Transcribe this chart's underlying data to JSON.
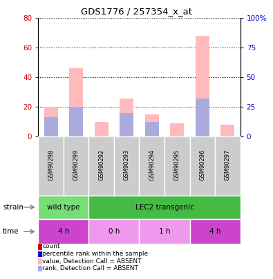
{
  "title": "GDS1776 / 257354_x_at",
  "samples": [
    "GSM90298",
    "GSM90299",
    "GSM90292",
    "GSM90293",
    "GSM90294",
    "GSM90295",
    "GSM90296",
    "GSM90297"
  ],
  "pink_bars": [
    20,
    46,
    10,
    26,
    15,
    9,
    68,
    8
  ],
  "blue_bars": [
    13,
    20,
    0,
    16,
    10,
    0,
    26,
    0
  ],
  "left_ylim": [
    0,
    80
  ],
  "right_ylim": [
    0,
    100
  ],
  "left_yticks": [
    0,
    20,
    40,
    60,
    80
  ],
  "right_yticks": [
    0,
    25,
    50,
    75,
    100
  ],
  "right_yticklabels": [
    "0",
    "25",
    "50",
    "75",
    "100%"
  ],
  "strain_labels": [
    {
      "label": "wild type",
      "start": 0,
      "end": 2,
      "color": "#77dd77"
    },
    {
      "label": "LEC2 transgenic",
      "start": 2,
      "end": 8,
      "color": "#44bb44"
    }
  ],
  "time_labels": [
    {
      "label": "4 h",
      "start": 0,
      "end": 2,
      "color": "#cc44cc"
    },
    {
      "label": "0 h",
      "start": 2,
      "end": 4,
      "color": "#ee99ee"
    },
    {
      "label": "1 h",
      "start": 4,
      "end": 6,
      "color": "#ee99ee"
    },
    {
      "label": "4 h",
      "start": 6,
      "end": 8,
      "color": "#cc44cc"
    }
  ],
  "bar_color_pink": "#ffbbbb",
  "bar_color_blue": "#aaaadd",
  "tick_label_color_left": "#cc0000",
  "tick_label_color_right": "#0000cc",
  "legend_items": [
    {
      "color": "#cc0000",
      "label": "count"
    },
    {
      "color": "#0000cc",
      "label": "percentile rank within the sample"
    },
    {
      "color": "#ffbbbb",
      "label": "value, Detection Call = ABSENT"
    },
    {
      "color": "#aaaadd",
      "label": "rank, Detection Call = ABSENT"
    }
  ]
}
